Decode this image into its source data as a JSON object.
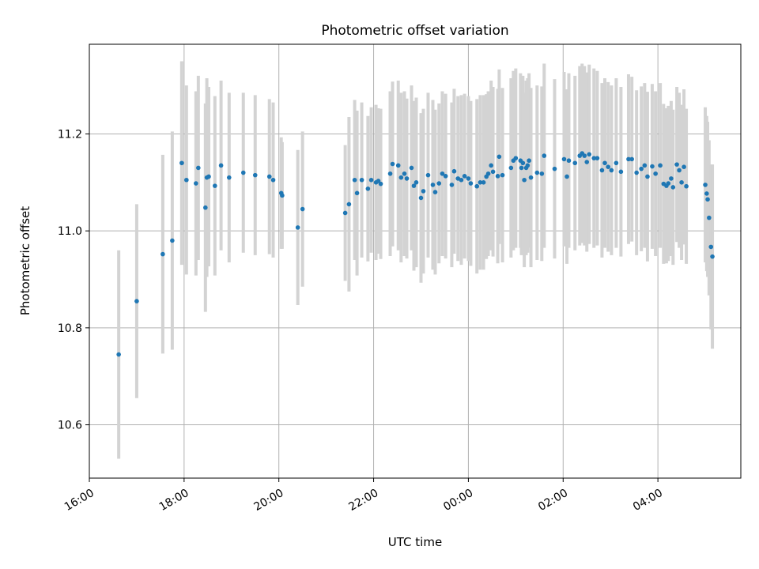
{
  "chart_data": {
    "type": "scatter",
    "title": "Photometric offset variation",
    "xlabel": "UTC time",
    "ylabel": "Photometric offset",
    "x_unit": "hours (UTC, continuing past midnight)",
    "xlim": [
      16.0,
      29.75
    ],
    "ylim": [
      10.49,
      11.385
    ],
    "x_ticks": [
      {
        "value": 16,
        "label": "16:00"
      },
      {
        "value": 18,
        "label": "18:00"
      },
      {
        "value": 20,
        "label": "20:00"
      },
      {
        "value": 22,
        "label": "22:00"
      },
      {
        "value": 24,
        "label": "00:00"
      },
      {
        "value": 26,
        "label": "02:00"
      },
      {
        "value": 28,
        "label": "04:00"
      }
    ],
    "y_ticks": [
      {
        "value": 10.6,
        "label": "10.6"
      },
      {
        "value": 10.8,
        "label": "10.8"
      },
      {
        "value": 11.0,
        "label": "11.0"
      },
      {
        "value": 11.2,
        "label": "11.2"
      }
    ],
    "grid": true,
    "legend": "none",
    "point_color": "#1f77b4",
    "errorbar_color": "#d3d3d3",
    "series": [
      {
        "points": [
          [
            16.62,
            10.745,
            0.215
          ],
          [
            17.0,
            10.855,
            0.2
          ],
          [
            17.55,
            10.952,
            0.205
          ],
          [
            17.75,
            10.98,
            0.225
          ],
          [
            17.95,
            11.14,
            0.21
          ],
          [
            18.05,
            11.105,
            0.195
          ],
          [
            18.25,
            11.098,
            0.19
          ],
          [
            18.3,
            11.13,
            0.19
          ],
          [
            18.45,
            11.048,
            0.215
          ],
          [
            18.48,
            11.11,
            0.205
          ],
          [
            18.52,
            11.112,
            0.185
          ],
          [
            18.65,
            11.093,
            0.185
          ],
          [
            18.78,
            11.135,
            0.175
          ],
          [
            18.95,
            11.11,
            0.175
          ],
          [
            19.25,
            11.12,
            0.165
          ],
          [
            19.5,
            11.115,
            0.165
          ],
          [
            19.8,
            11.112,
            0.16
          ],
          [
            19.88,
            11.105,
            0.16
          ],
          [
            20.05,
            11.078,
            0.115
          ],
          [
            20.07,
            11.073,
            0.11
          ],
          [
            20.4,
            11.007,
            0.16
          ],
          [
            20.5,
            11.045,
            0.16
          ],
          [
            21.4,
            11.037,
            0.14
          ],
          [
            21.48,
            11.055,
            0.18
          ],
          [
            21.6,
            11.105,
            0.165
          ],
          [
            21.65,
            11.078,
            0.17
          ],
          [
            21.75,
            11.105,
            0.16
          ],
          [
            21.88,
            11.087,
            0.15
          ],
          [
            21.95,
            11.105,
            0.15
          ],
          [
            22.05,
            11.1,
            0.16
          ],
          [
            22.1,
            11.103,
            0.15
          ],
          [
            22.15,
            11.097,
            0.155
          ],
          [
            22.35,
            11.118,
            0.17
          ],
          [
            22.4,
            11.138,
            0.17
          ],
          [
            22.52,
            11.135,
            0.175
          ],
          [
            22.58,
            11.11,
            0.175
          ],
          [
            22.65,
            11.118,
            0.17
          ],
          [
            22.7,
            11.108,
            0.165
          ],
          [
            22.8,
            11.13,
            0.17
          ],
          [
            22.85,
            11.093,
            0.175
          ],
          [
            22.9,
            11.1,
            0.175
          ],
          [
            23.0,
            11.068,
            0.175
          ],
          [
            23.05,
            11.082,
            0.17
          ],
          [
            23.15,
            11.115,
            0.17
          ],
          [
            23.25,
            11.095,
            0.175
          ],
          [
            23.3,
            11.08,
            0.17
          ],
          [
            23.38,
            11.098,
            0.165
          ],
          [
            23.45,
            11.118,
            0.17
          ],
          [
            23.52,
            11.113,
            0.17
          ],
          [
            23.65,
            11.095,
            0.17
          ],
          [
            23.7,
            11.123,
            0.17
          ],
          [
            23.78,
            11.108,
            0.17
          ],
          [
            23.85,
            11.105,
            0.175
          ],
          [
            23.92,
            11.113,
            0.17
          ],
          [
            24.0,
            11.108,
            0.17
          ],
          [
            24.05,
            11.098,
            0.17
          ],
          [
            24.18,
            11.092,
            0.18
          ],
          [
            24.25,
            11.1,
            0.18
          ],
          [
            24.32,
            11.1,
            0.18
          ],
          [
            24.38,
            11.112,
            0.17
          ],
          [
            24.42,
            11.118,
            0.17
          ],
          [
            24.48,
            11.135,
            0.175
          ],
          [
            24.52,
            11.122,
            0.175
          ],
          [
            24.62,
            11.113,
            0.18
          ],
          [
            24.65,
            11.153,
            0.18
          ],
          [
            24.72,
            11.115,
            0.18
          ],
          [
            24.9,
            11.13,
            0.185
          ],
          [
            24.95,
            11.145,
            0.185
          ],
          [
            25.0,
            11.15,
            0.185
          ],
          [
            25.1,
            11.145,
            0.18
          ],
          [
            25.12,
            11.13,
            0.18
          ],
          [
            25.15,
            11.14,
            0.18
          ],
          [
            25.18,
            11.105,
            0.18
          ],
          [
            25.22,
            11.13,
            0.18
          ],
          [
            25.25,
            11.135,
            0.18
          ],
          [
            25.28,
            11.145,
            0.18
          ],
          [
            25.32,
            11.11,
            0.185
          ],
          [
            25.45,
            11.12,
            0.18
          ],
          [
            25.55,
            11.118,
            0.18
          ],
          [
            25.6,
            11.155,
            0.19
          ],
          [
            25.82,
            11.128,
            0.185
          ],
          [
            26.02,
            11.148,
            0.18
          ],
          [
            26.08,
            11.112,
            0.18
          ],
          [
            26.12,
            11.145,
            0.18
          ],
          [
            26.25,
            11.14,
            0.18
          ],
          [
            26.35,
            11.155,
            0.185
          ],
          [
            26.4,
            11.16,
            0.185
          ],
          [
            26.45,
            11.155,
            0.185
          ],
          [
            26.5,
            11.142,
            0.185
          ],
          [
            26.55,
            11.158,
            0.185
          ],
          [
            26.65,
            11.15,
            0.185
          ],
          [
            26.72,
            11.15,
            0.18
          ],
          [
            26.82,
            11.125,
            0.18
          ],
          [
            26.88,
            11.14,
            0.175
          ],
          [
            26.95,
            11.132,
            0.175
          ],
          [
            27.02,
            11.125,
            0.175
          ],
          [
            27.12,
            11.14,
            0.175
          ],
          [
            27.22,
            11.122,
            0.175
          ],
          [
            27.38,
            11.148,
            0.175
          ],
          [
            27.45,
            11.148,
            0.17
          ],
          [
            27.55,
            11.12,
            0.17
          ],
          [
            27.65,
            11.128,
            0.17
          ],
          [
            27.72,
            11.135,
            0.17
          ],
          [
            27.78,
            11.112,
            0.175
          ],
          [
            27.88,
            11.133,
            0.17
          ],
          [
            27.95,
            11.118,
            0.17
          ],
          [
            28.05,
            11.135,
            0.17
          ],
          [
            28.12,
            11.097,
            0.165
          ],
          [
            28.18,
            11.093,
            0.16
          ],
          [
            28.22,
            11.098,
            0.16
          ],
          [
            28.28,
            11.108,
            0.16
          ],
          [
            28.32,
            11.09,
            0.16
          ],
          [
            28.4,
            11.137,
            0.16
          ],
          [
            28.45,
            11.125,
            0.16
          ],
          [
            28.5,
            11.1,
            0.16
          ],
          [
            28.55,
            11.132,
            0.16
          ],
          [
            28.6,
            11.092,
            0.16
          ],
          [
            29.0,
            11.095,
            0.16
          ],
          [
            29.03,
            11.077,
            0.16
          ],
          [
            29.05,
            11.065,
            0.16
          ],
          [
            29.08,
            11.027,
            0.16
          ],
          [
            29.12,
            10.967,
            0.17
          ],
          [
            29.15,
            10.947,
            0.19
          ]
        ]
      }
    ]
  }
}
